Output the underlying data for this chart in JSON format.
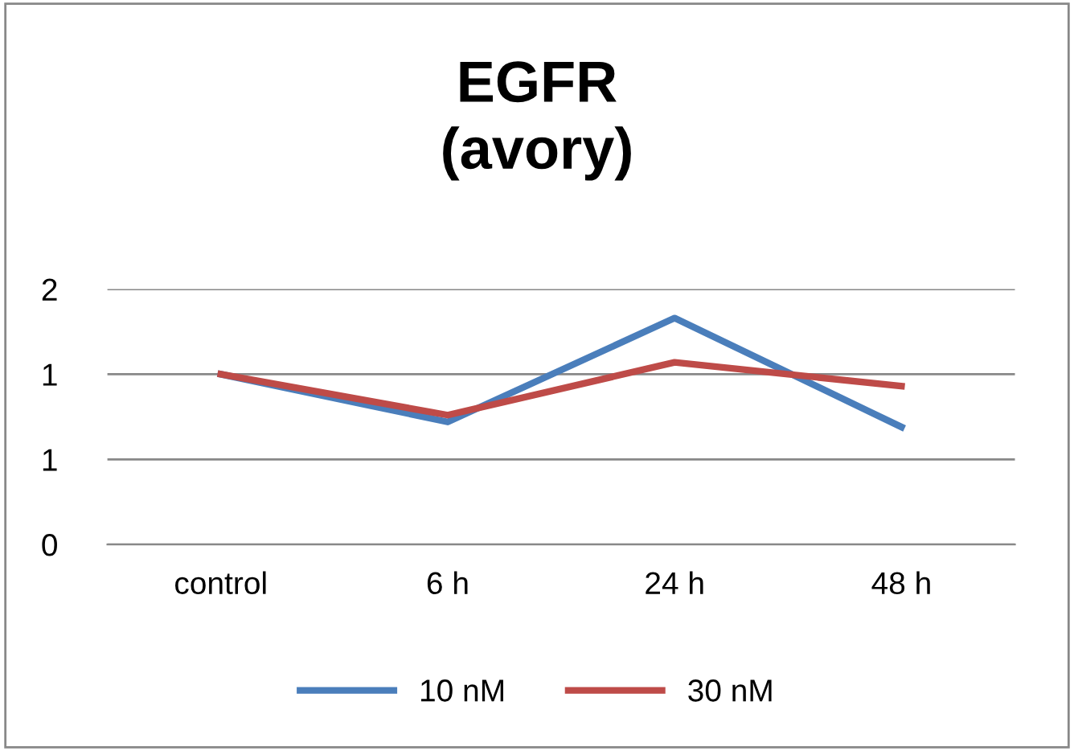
{
  "chart_data": {
    "type": "line",
    "title": "EGFR\n(avory)",
    "categories": [
      "control",
      "6 h",
      "24 h",
      "48 h"
    ],
    "series": [
      {
        "name": "10 nM",
        "color": "#4a7ebb",
        "values": [
          1.0,
          0.72,
          1.33,
          0.69
        ]
      },
      {
        "name": "30 nM",
        "color": "#be4b48",
        "values": [
          1.0,
          0.76,
          1.07,
          0.93
        ]
      }
    ],
    "ylim": [
      0,
      1.5
    ],
    "yticks": [
      {
        "value": 0,
        "label": "0"
      },
      {
        "value": 0.5,
        "label": "1"
      },
      {
        "value": 1,
        "label": "1"
      },
      {
        "value": 1.5,
        "label": "2"
      }
    ],
    "grid": "y",
    "legend": "bottom",
    "marker": "none",
    "line_style": "solid"
  }
}
